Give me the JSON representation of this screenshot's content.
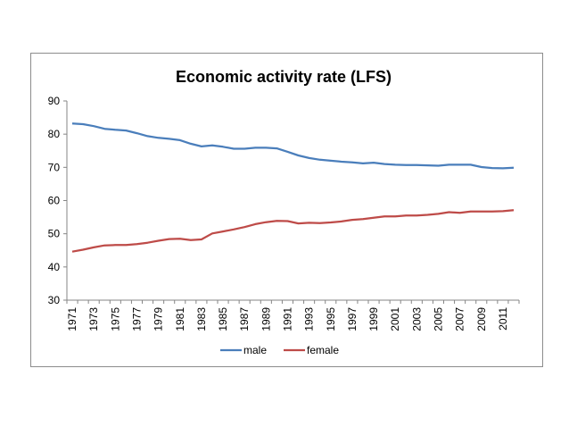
{
  "chart_data": {
    "type": "line",
    "title": "Economic activity rate (LFS)",
    "xlabel": "",
    "ylabel": "",
    "ylim": [
      30,
      90
    ],
    "yticks": [
      30,
      40,
      50,
      60,
      70,
      80,
      90
    ],
    "grid": false,
    "legend_position": "bottom",
    "x": [
      1971,
      1972,
      1973,
      1974,
      1975,
      1976,
      1977,
      1978,
      1979,
      1980,
      1981,
      1982,
      1983,
      1984,
      1985,
      1986,
      1987,
      1988,
      1989,
      1990,
      1991,
      1992,
      1993,
      1994,
      1995,
      1996,
      1997,
      1998,
      1999,
      2000,
      2001,
      2002,
      2003,
      2004,
      2005,
      2006,
      2007,
      2008,
      2009,
      2010,
      2011,
      2012
    ],
    "xtick_labels": [
      "1971",
      "1973",
      "1975",
      "1977",
      "1979",
      "1981",
      "1983",
      "1985",
      "1987",
      "1989",
      "1991",
      "1993",
      "1995",
      "1997",
      "1999",
      "2001",
      "2003",
      "2005",
      "2007",
      "2009",
      "2011"
    ],
    "series": [
      {
        "name": "male",
        "color": "#4a7ebb",
        "values": [
          83.2,
          83.0,
          82.4,
          81.6,
          81.3,
          81.1,
          80.3,
          79.4,
          78.9,
          78.6,
          78.2,
          77.1,
          76.3,
          76.6,
          76.2,
          75.6,
          75.6,
          75.9,
          75.9,
          75.7,
          74.7,
          73.6,
          72.8,
          72.3,
          72.0,
          71.7,
          71.5,
          71.2,
          71.4,
          71.0,
          70.8,
          70.7,
          70.7,
          70.6,
          70.5,
          70.8,
          70.8,
          70.8,
          70.1,
          69.8,
          69.7,
          69.9
        ]
      },
      {
        "name": "female",
        "color": "#be4b48",
        "values": [
          44.6,
          45.2,
          45.9,
          46.5,
          46.6,
          46.6,
          46.9,
          47.3,
          47.9,
          48.4,
          48.5,
          48.1,
          48.3,
          50.1,
          50.7,
          51.3,
          52.0,
          52.9,
          53.5,
          53.9,
          53.8,
          53.1,
          53.3,
          53.2,
          53.4,
          53.7,
          54.2,
          54.4,
          54.8,
          55.2,
          55.2,
          55.5,
          55.5,
          55.7,
          56.0,
          56.5,
          56.3,
          56.7,
          56.7,
          56.7,
          56.8,
          57.1
        ]
      }
    ]
  }
}
